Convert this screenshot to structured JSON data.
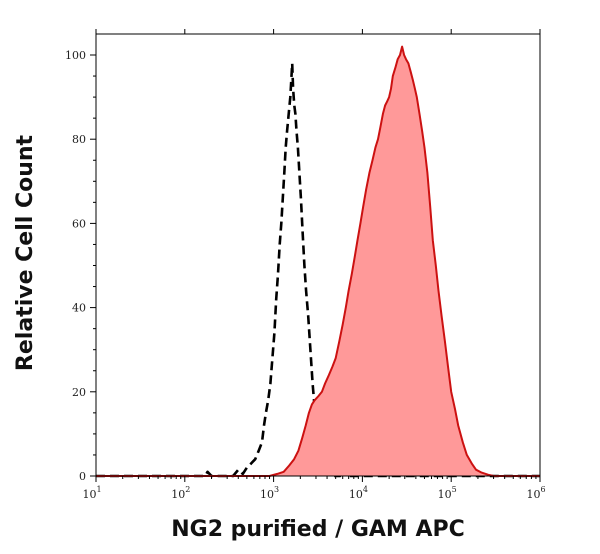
{
  "chart_data": {
    "type": "area",
    "title": "",
    "xlabel": "NG2 purified / GAM APC",
    "ylabel": "Relative Cell Count",
    "x_scale": "log",
    "xlim": [
      10,
      1000000
    ],
    "ylim": [
      0,
      105
    ],
    "x_ticks": [
      {
        "base": "10",
        "exp": "1"
      },
      {
        "base": "10",
        "exp": "2"
      },
      {
        "base": "10",
        "exp": "3"
      },
      {
        "base": "10",
        "exp": "4"
      },
      {
        "base": "10",
        "exp": "5"
      },
      {
        "base": "10",
        "exp": "6"
      }
    ],
    "x_tick_values": [
      10,
      100,
      1000,
      10000,
      100000,
      1000000
    ],
    "y_ticks": [
      "0",
      "20",
      "40",
      "60",
      "80",
      "100"
    ],
    "y_tick_values": [
      0,
      20,
      40,
      60,
      80,
      100
    ],
    "grid": false,
    "series": [
      {
        "style": "dashed",
        "color": "#000000",
        "points": [
          [
            10,
            0
          ],
          [
            170,
            0
          ],
          [
            180,
            1
          ],
          [
            200,
            0
          ],
          [
            350,
            0
          ],
          [
            400,
            1.5
          ],
          [
            450,
            0.5
          ],
          [
            500,
            2
          ],
          [
            560,
            3
          ],
          [
            620,
            4
          ],
          [
            680,
            6
          ],
          [
            740,
            8
          ],
          [
            780,
            12
          ],
          [
            820,
            15
          ],
          [
            870,
            18
          ],
          [
            920,
            22
          ],
          [
            970,
            28
          ],
          [
            1020,
            34
          ],
          [
            1070,
            42
          ],
          [
            1120,
            48
          ],
          [
            1170,
            55
          ],
          [
            1220,
            60
          ],
          [
            1270,
            66
          ],
          [
            1320,
            72
          ],
          [
            1370,
            78
          ],
          [
            1420,
            82
          ],
          [
            1480,
            86
          ],
          [
            1540,
            90
          ],
          [
            1590,
            95
          ],
          [
            1620,
            98
          ],
          [
            1660,
            92
          ],
          [
            1710,
            88
          ],
          [
            1760,
            86
          ],
          [
            1810,
            82
          ],
          [
            1880,
            78
          ],
          [
            1950,
            72
          ],
          [
            2030,
            66
          ],
          [
            2120,
            58
          ],
          [
            2220,
            50
          ],
          [
            2320,
            44
          ],
          [
            2450,
            38
          ],
          [
            2600,
            30
          ],
          [
            2750,
            22
          ],
          [
            2900,
            16
          ],
          [
            3100,
            10
          ],
          [
            3350,
            6
          ],
          [
            3600,
            3
          ],
          [
            3900,
            1
          ],
          [
            4300,
            0
          ],
          [
            5600,
            0
          ],
          [
            6100,
            2
          ],
          [
            6400,
            0
          ],
          [
            1000000,
            0
          ]
        ]
      },
      {
        "style": "filled",
        "color": "#cc1111",
        "fill": "#ff9999",
        "points": [
          [
            10,
            0
          ],
          [
            900,
            0
          ],
          [
            1100,
            0.5
          ],
          [
            1300,
            1
          ],
          [
            1500,
            2.5
          ],
          [
            1700,
            4
          ],
          [
            1900,
            6
          ],
          [
            2100,
            9
          ],
          [
            2300,
            12
          ],
          [
            2500,
            15
          ],
          [
            2700,
            17
          ],
          [
            2900,
            18
          ],
          [
            3200,
            19
          ],
          [
            3500,
            20
          ],
          [
            3800,
            22
          ],
          [
            4200,
            24
          ],
          [
            4600,
            26
          ],
          [
            5000,
            28
          ],
          [
            5500,
            32
          ],
          [
            6000,
            36
          ],
          [
            6500,
            40
          ],
          [
            7000,
            44
          ],
          [
            7600,
            48
          ],
          [
            8200,
            52
          ],
          [
            8800,
            56
          ],
          [
            9500,
            60
          ],
          [
            10200,
            64
          ],
          [
            11000,
            68
          ],
          [
            12000,
            72
          ],
          [
            13000,
            75
          ],
          [
            14000,
            78
          ],
          [
            15000,
            80
          ],
          [
            16000,
            83
          ],
          [
            17000,
            86
          ],
          [
            18000,
            88
          ],
          [
            19000,
            89
          ],
          [
            20000,
            90
          ],
          [
            21000,
            92
          ],
          [
            22000,
            95
          ],
          [
            23500,
            97
          ],
          [
            25000,
            99
          ],
          [
            26500,
            100
          ],
          [
            28000,
            102
          ],
          [
            29500,
            100
          ],
          [
            31000,
            99
          ],
          [
            33000,
            98
          ],
          [
            35000,
            96
          ],
          [
            37000,
            94
          ],
          [
            39000,
            92
          ],
          [
            41000,
            90
          ],
          [
            44000,
            86
          ],
          [
            47000,
            82
          ],
          [
            50000,
            78
          ],
          [
            54000,
            72
          ],
          [
            58000,
            64
          ],
          [
            62000,
            56
          ],
          [
            67000,
            50
          ],
          [
            72000,
            44
          ],
          [
            78000,
            38
          ],
          [
            85000,
            32
          ],
          [
            92000,
            26
          ],
          [
            100000,
            20
          ],
          [
            110000,
            16
          ],
          [
            120000,
            12
          ],
          [
            135000,
            8
          ],
          [
            150000,
            5
          ],
          [
            170000,
            3
          ],
          [
            190000,
            1.5
          ],
          [
            220000,
            0.8
          ],
          [
            260000,
            0.3
          ],
          [
            300000,
            0
          ],
          [
            1000000,
            0
          ]
        ]
      }
    ]
  }
}
